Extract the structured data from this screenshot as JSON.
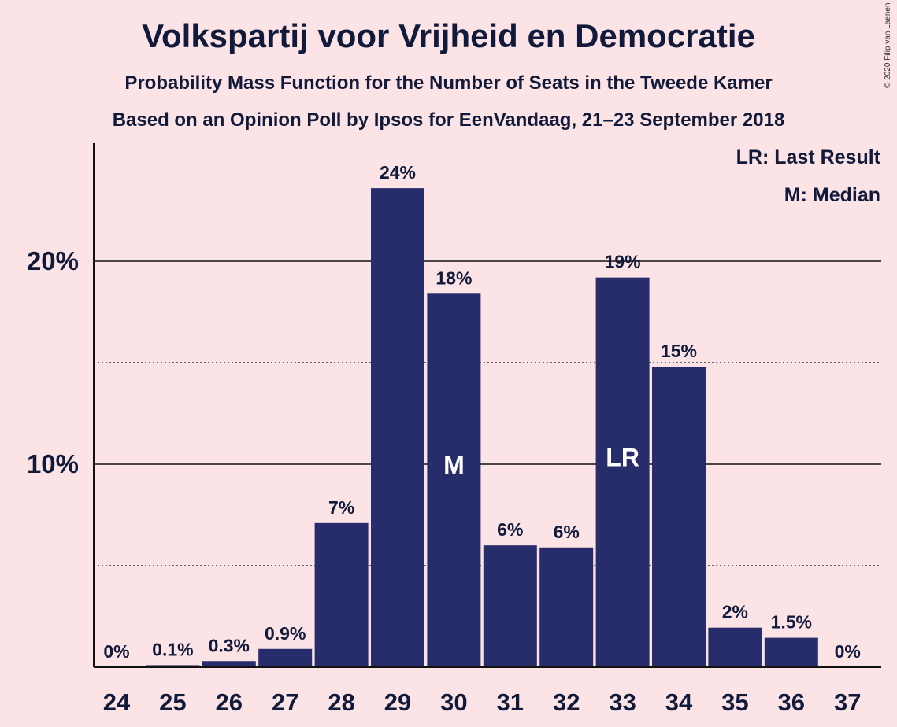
{
  "chart_data": {
    "type": "bar",
    "title": "Volkspartij voor Vrijheid en Democratie",
    "subtitle": "Probability Mass Function for the Number of Seats in the Tweede Kamer",
    "subtitle2": "Based on an Opinion Poll by Ipsos for EenVandaag, 21–23 September 2018",
    "copyright": "© 2020 Filip van Laenen",
    "categories": [
      "24",
      "25",
      "26",
      "27",
      "28",
      "29",
      "30",
      "31",
      "32",
      "33",
      "34",
      "35",
      "36",
      "37"
    ],
    "values": [
      0,
      0.1,
      0.3,
      0.9,
      7.1,
      23.6,
      18.4,
      6.0,
      5.9,
      19.2,
      14.8,
      1.95,
      1.45,
      0
    ],
    "data_labels": [
      "0%",
      "0.1%",
      "0.3%",
      "0.9%",
      "7%",
      "24%",
      "18%",
      "6%",
      "6%",
      "19%",
      "15%",
      "2%",
      "1.5%",
      "0%"
    ],
    "bar_markers": {
      "30": "M",
      "33": "LR"
    },
    "ylim": [
      0,
      25
    ],
    "y_ticks": [
      {
        "value": 10,
        "label": "10%"
      },
      {
        "value": 20,
        "label": "20%"
      }
    ],
    "minor_gridlines": [
      5,
      15
    ],
    "legend": {
      "position": "top-right",
      "entries": [
        "LR: Last Result",
        "M: Median"
      ]
    },
    "bar_color": "#272c6a",
    "background_color": "#fce4e6"
  }
}
